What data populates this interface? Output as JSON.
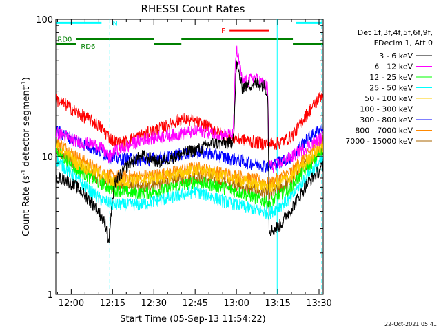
{
  "chart_data": {
    "type": "line",
    "title": "RHESSI Count Rates",
    "xlabel": "Start Time (05-Sep-13 11:54:22)",
    "ylabel": "Count Rate (s⁻¹ detector segment⁻¹)",
    "ylabel_main": "Count Rate (s",
    "ylabel_sup1": "-1",
    "ylabel_mid": " detector segment",
    "ylabel_sup2": "-1",
    "ylabel_end": ")",
    "yscale": "log",
    "ylim": [
      1,
      100
    ],
    "xlim_minutes": [
      714.4,
      811.5
    ],
    "x_ticks": [
      {
        "label": "12:00",
        "minute": 720
      },
      {
        "label": "12:15",
        "minute": 735
      },
      {
        "label": "12:30",
        "minute": 750
      },
      {
        "label": "12:45",
        "minute": 765
      },
      {
        "label": "13:00",
        "minute": 780
      },
      {
        "label": "13:15",
        "minute": 795
      },
      {
        "label": "13:30",
        "minute": 810
      }
    ],
    "y_ticks": [
      {
        "label": "1",
        "value": 1
      },
      {
        "label": "10",
        "value": 10
      },
      {
        "label": "100",
        "value": 100
      }
    ],
    "legend_header": [
      "Det 1f,3f,4f,5f,6f,9f,",
      "FDecim 1, Att 0"
    ],
    "legend_placement": "right",
    "series": [
      {
        "name": "3 - 6 keV",
        "color": "#000000",
        "x": [
          714.5,
          718,
          722,
          726,
          730,
          733,
          733.6,
          736,
          741,
          746,
          752,
          757,
          762,
          767,
          771,
          776,
          778.5,
          779.2,
          779.6,
          780,
          782,
          784,
          786,
          788,
          790,
          791.3,
          791.8,
          793,
          796,
          800,
          803,
          806,
          809,
          811.4
        ],
        "values": [
          7.2,
          6.8,
          6.0,
          5.0,
          4.0,
          3.0,
          2.3,
          6.5,
          9.0,
          10.2,
          9.2,
          10.0,
          10.8,
          11.5,
          12.5,
          12.5,
          12.8,
          16.0,
          30.0,
          48.0,
          32.0,
          33.0,
          34.0,
          34.0,
          33.0,
          30.0,
          3.0,
          2.9,
          3.2,
          4.2,
          5.2,
          6.5,
          7.5,
          8.5
        ]
      },
      {
        "name": "6 - 12 keV",
        "color": "#ff00ff",
        "x": [
          714.5,
          718,
          722,
          726,
          730,
          733,
          733.6,
          736,
          741,
          746,
          752,
          757,
          762,
          767,
          771,
          776,
          778.5,
          779.2,
          779.6,
          780,
          782,
          784,
          786,
          788,
          790,
          791.3,
          791.8,
          793,
          796,
          800,
          803,
          806,
          809,
          811.4
        ],
        "values": [
          15.0,
          14.0,
          13.0,
          12.5,
          12.0,
          10.5,
          9.8,
          11.0,
          12.0,
          13.5,
          14.0,
          14.5,
          15.0,
          15.5,
          15.0,
          14.5,
          14.5,
          20.0,
          48.0,
          60.0,
          36.0,
          35.0,
          38.0,
          36.0,
          34.0,
          32.0,
          9.0,
          8.5,
          9.0,
          10.0,
          11.0,
          12.0,
          13.0,
          14.0
        ]
      },
      {
        "name": "12 - 25 keV",
        "color": "#00ff00",
        "x": [
          714.5,
          722,
          730,
          735,
          745,
          755,
          765,
          775,
          785,
          792,
          800,
          805,
          811.4
        ],
        "values": [
          11.0,
          8.0,
          6.5,
          5.8,
          5.4,
          5.8,
          6.6,
          6.0,
          5.2,
          4.6,
          6.0,
          8.0,
          11.0
        ]
      },
      {
        "name": "25 - 50 keV",
        "color": "#00ffff",
        "x": [
          714.5,
          722,
          730,
          735,
          745,
          755,
          765,
          775,
          785,
          792,
          800,
          805,
          811.4
        ],
        "values": [
          9.5,
          6.8,
          5.0,
          4.5,
          4.5,
          5.0,
          5.6,
          4.8,
          4.2,
          3.9,
          5.0,
          7.0,
          9.5
        ]
      },
      {
        "name": "50 - 100 keV",
        "color": "#ffcc00",
        "x": [
          714.5,
          722,
          730,
          735,
          745,
          755,
          765,
          775,
          785,
          792,
          800,
          805,
          811.4
        ],
        "values": [
          12.0,
          9.0,
          7.5,
          6.6,
          6.8,
          7.2,
          8.0,
          7.2,
          6.5,
          6.0,
          7.2,
          9.0,
          12.0
        ]
      },
      {
        "name": "100 - 300 keV",
        "color": "#ff0000",
        "x": [
          714.5,
          718,
          722,
          726,
          730,
          733,
          735,
          738,
          742,
          746,
          750,
          755,
          760,
          765,
          770,
          775,
          780,
          785,
          790,
          795,
          800,
          803,
          806,
          809,
          811.4
        ],
        "values": [
          26.0,
          24.0,
          21.0,
          19.0,
          17.0,
          14.5,
          13.2,
          12.5,
          13.5,
          14.5,
          15.5,
          17.0,
          19.0,
          18.0,
          16.5,
          14.5,
          13.5,
          13.0,
          12.5,
          12.5,
          14.0,
          17.0,
          21.0,
          25.0,
          29.0
        ]
      },
      {
        "name": "300 - 800 keV",
        "color": "#0000ff",
        "x": [
          714.5,
          722,
          730,
          735,
          745,
          755,
          765,
          775,
          785,
          792,
          800,
          805,
          811.4
        ],
        "values": [
          15.5,
          13.0,
          11.0,
          9.8,
          9.5,
          10.0,
          11.0,
          10.0,
          9.0,
          8.5,
          10.0,
          13.0,
          16.5
        ]
      },
      {
        "name": "800 - 7000 keV",
        "color": "#ff8800",
        "x": [
          714.5,
          722,
          730,
          735,
          745,
          755,
          765,
          775,
          785,
          792,
          800,
          805,
          811.4
        ],
        "values": [
          13.0,
          10.0,
          8.0,
          7.2,
          7.2,
          7.6,
          8.4,
          7.6,
          7.0,
          6.4,
          7.8,
          10.0,
          13.0
        ]
      },
      {
        "name": "7000 - 15000 keV",
        "color": "#aa6600",
        "x": [
          714.5,
          722,
          730,
          735,
          745,
          755,
          765,
          775,
          785,
          792,
          800,
          805,
          811.4
        ],
        "values": [
          11.0,
          8.6,
          7.0,
          6.2,
          6.0,
          6.5,
          7.2,
          6.6,
          5.8,
          5.3,
          6.6,
          8.8,
          11.5
        ]
      }
    ],
    "vertical_lines": [
      {
        "minute": 734.0,
        "style": "dashed",
        "color": "#00ffff"
      },
      {
        "minute": 794.8,
        "style": "solid",
        "color": "#00ffff"
      },
      {
        "minute": 811.0,
        "style": "dashed",
        "color": "#00ffff"
      }
    ],
    "flag_bars": [
      {
        "label": "N",
        "color": "#00ffff",
        "value": 94,
        "start": 714.5,
        "end": 731.0,
        "label_at": 735.0,
        "label_value": 94
      },
      {
        "label": "",
        "color": "#00ffff",
        "value": 94,
        "start": 801.5,
        "end": 811.0
      },
      {
        "label": "RD0",
        "color": "#008000",
        "value": 66,
        "start": 714.5,
        "end": 721.8,
        "label_at": 715.0,
        "label_value": 72
      },
      {
        "label": "RD6",
        "color": "#008000",
        "value": 72,
        "start": 721.8,
        "end": 750.0,
        "label_at": 723.5,
        "label_value": 64
      },
      {
        "label": "",
        "color": "#008000",
        "value": 66,
        "start": 750.0,
        "end": 760.0
      },
      {
        "label": "",
        "color": "#008000",
        "value": 72,
        "start": 760.0,
        "end": 800.5
      },
      {
        "label": "",
        "color": "#008000",
        "value": 66,
        "start": 800.5,
        "end": 807.0
      },
      {
        "label": "",
        "color": "#008000",
        "value": 66,
        "start": 807.0,
        "end": 811.4
      },
      {
        "label": "F",
        "color": "#ff0000",
        "value": 83,
        "start": 777.5,
        "end": 791.8,
        "label_at": 774.5,
        "label_value": 83
      }
    ],
    "grid": false
  },
  "footer": {
    "timestamp": "22-Oct-2021 05:41"
  }
}
